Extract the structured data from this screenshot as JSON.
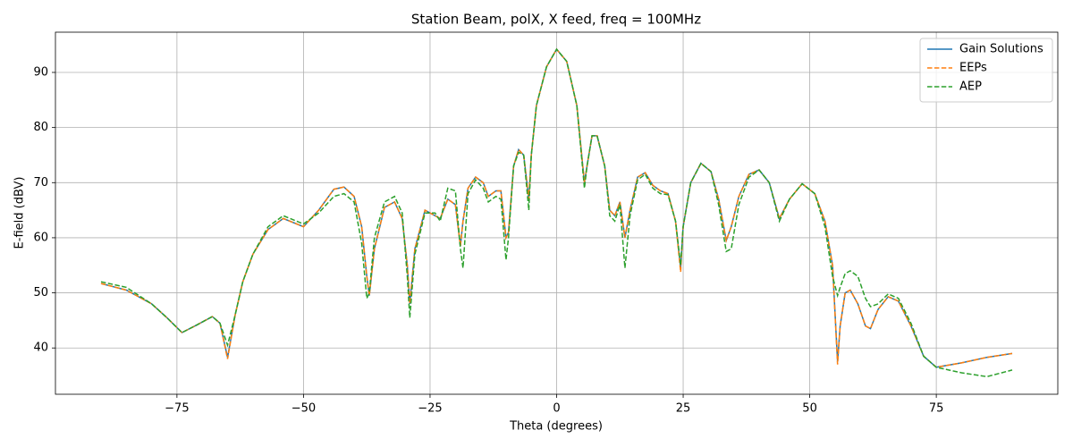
{
  "chart_data": {
    "type": "line",
    "title": "Station Beam, polX, X feed, freq = 100MHz",
    "x_label": "Theta (degrees)",
    "y_label": "E-field (dBV)",
    "x": [
      -90,
      -85,
      -80,
      -77,
      -74,
      -71,
      -68,
      -66.5,
      -65,
      -63.5,
      -62,
      -60,
      -57,
      -54,
      -50,
      -47,
      -44,
      -42,
      -40,
      -38.5,
      -37.5,
      -37,
      -36,
      -34,
      -32,
      -30.5,
      -29.5,
      -29,
      -28,
      -26,
      -24,
      -23,
      -21.5,
      -20,
      -19,
      -18.5,
      -17.5,
      -16,
      -14.5,
      -13.5,
      -12,
      -11,
      -10,
      -9.5,
      -8.5,
      -7.5,
      -6.5,
      -5.5,
      -5,
      -4,
      -2,
      0,
      2,
      4,
      5.5,
      6,
      7,
      8,
      9.5,
      10.5,
      11.5,
      12.5,
      13.5,
      14.5,
      16,
      17.5,
      19,
      20.5,
      22,
      23.5,
      24.5,
      25,
      26.5,
      28.5,
      30.5,
      32,
      33.5,
      34.5,
      36,
      38,
      40,
      42,
      44,
      46,
      48.5,
      51,
      53,
      54.5,
      55.5,
      56,
      57,
      58,
      59.5,
      61,
      62,
      63.5,
      65.5,
      67.5,
      70,
      72.5,
      75,
      80,
      85,
      90
    ],
    "series": [
      {
        "name": "Gain Solutions",
        "color": "#1f77b4",
        "linestyle": "solid",
        "values": [
          51.7,
          50.5,
          48,
          45.5,
          42.8,
          44.2,
          45.7,
          44.5,
          38.3,
          46,
          52,
          57,
          61.5,
          63.5,
          62,
          65,
          68.8,
          69.2,
          67.5,
          62,
          53,
          49.5,
          58,
          65.5,
          66.5,
          63.5,
          55,
          48,
          58,
          65,
          64,
          63.5,
          67,
          66,
          58.5,
          63,
          69,
          71,
          70,
          67.5,
          68.5,
          68.5,
          60,
          61,
          73,
          76,
          75,
          67,
          75,
          84,
          91,
          94.2,
          92,
          84,
          70,
          73,
          78.5,
          78.5,
          73,
          65,
          64,
          66.5,
          60,
          65,
          71,
          71.8,
          69.5,
          68.5,
          68,
          63,
          54.5,
          62,
          70,
          73.5,
          72,
          67,
          59.5,
          62,
          67.5,
          71.5,
          72.3,
          70,
          63.5,
          67,
          69.8,
          68,
          63,
          55,
          37.5,
          44,
          50,
          50.5,
          48,
          44,
          43.5,
          47,
          49.3,
          48.5,
          44,
          38.5,
          36.5,
          37.3,
          38.3,
          39
        ]
      },
      {
        "name": "EEPs",
        "color": "#ff7f0e",
        "linestyle": "dashed",
        "values": [
          51.7,
          50.5,
          48,
          45.5,
          42.8,
          44.2,
          45.7,
          44.5,
          38,
          46,
          52,
          57,
          61.5,
          63.5,
          62,
          65,
          68.8,
          69.2,
          67.5,
          62,
          53,
          49.5,
          58,
          65.5,
          66.5,
          63.5,
          55,
          48,
          58,
          65,
          64,
          63.5,
          67,
          66,
          58.5,
          63,
          69,
          71,
          70,
          67.5,
          68.5,
          68.5,
          60,
          61,
          73,
          76,
          75,
          67,
          75,
          84,
          91,
          94.2,
          92,
          84,
          70,
          73,
          78.5,
          78.5,
          73,
          65,
          64,
          66.5,
          60,
          65,
          71,
          71.8,
          69.5,
          68.5,
          68,
          63,
          53.8,
          62,
          70,
          73.5,
          72,
          67,
          59.5,
          62,
          67.5,
          71.5,
          72.3,
          70,
          63.5,
          67,
          69.8,
          68,
          63,
          55,
          37,
          44,
          50,
          50.5,
          48,
          44,
          43.5,
          47,
          49.3,
          48.5,
          44,
          38.5,
          36.5,
          37.3,
          38.3,
          39
        ]
      },
      {
        "name": "AEP",
        "color": "#2ca02c",
        "linestyle": "dashed",
        "values": [
          52,
          51,
          48,
          45.5,
          42.8,
          44.2,
          45.7,
          44.5,
          40.5,
          46,
          52,
          57,
          62,
          64,
          62.5,
          64.5,
          67.5,
          68,
          66.5,
          59,
          49,
          50,
          60,
          66.5,
          67.5,
          64.5,
          53,
          45.5,
          57,
          64.5,
          64.5,
          63,
          69,
          68.5,
          58,
          54.5,
          68,
          70.5,
          69,
          66.5,
          67.5,
          67,
          56,
          60,
          73,
          75.5,
          75,
          65,
          75,
          84,
          91,
          94.2,
          92,
          84,
          69,
          73,
          78.5,
          78.5,
          73,
          64,
          63,
          66,
          54.5,
          64,
          70.5,
          71.5,
          69,
          68,
          67.8,
          63,
          55,
          62,
          70,
          73.5,
          72,
          66,
          57.5,
          58,
          66,
          71,
          72.3,
          70,
          63,
          67,
          69.8,
          68,
          62,
          53,
          49.5,
          51,
          53.5,
          54,
          53,
          49,
          47.5,
          48,
          49.8,
          49,
          44.5,
          38.5,
          36.5,
          35.5,
          34.8,
          36
        ]
      }
    ],
    "xlim": [
      -99,
      99
    ],
    "ylim": [
      31.6,
      97.3
    ],
    "xticks": [
      {
        "value": -75,
        "label": "−75"
      },
      {
        "value": -50,
        "label": "−50"
      },
      {
        "value": -25,
        "label": "−25"
      },
      0,
      25,
      50,
      75
    ],
    "yticks": [
      40,
      50,
      60,
      70,
      80,
      90
    ],
    "grid": true,
    "legend": "upper right"
  }
}
